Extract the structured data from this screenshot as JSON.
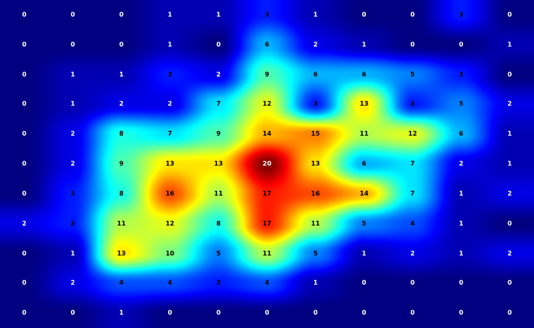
{
  "chart_data": {
    "type": "heatmap",
    "title": "",
    "xlabel": "",
    "ylabel": "",
    "rows": 11,
    "cols": 11,
    "values": [
      [
        0,
        0,
        0,
        1,
        1,
        3,
        1,
        0,
        0,
        3,
        0
      ],
      [
        0,
        0,
        0,
        1,
        0,
        6,
        2,
        1,
        0,
        0,
        1
      ],
      [
        0,
        1,
        1,
        3,
        2,
        9,
        6,
        6,
        5,
        3,
        0
      ],
      [
        0,
        1,
        2,
        2,
        7,
        12,
        3,
        13,
        3,
        5,
        2
      ],
      [
        0,
        2,
        8,
        7,
        9,
        14,
        15,
        11,
        12,
        6,
        1
      ],
      [
        0,
        2,
        9,
        13,
        13,
        20,
        13,
        6,
        7,
        2,
        1
      ],
      [
        0,
        3,
        8,
        16,
        11,
        17,
        16,
        14,
        7,
        1,
        2
      ],
      [
        2,
        3,
        11,
        12,
        8,
        17,
        11,
        5,
        4,
        1,
        0
      ],
      [
        0,
        1,
        13,
        10,
        5,
        11,
        5,
        1,
        2,
        1,
        2
      ],
      [
        0,
        2,
        4,
        4,
        3,
        4,
        1,
        0,
        0,
        0,
        0
      ],
      [
        0,
        0,
        1,
        0,
        0,
        0,
        0,
        0,
        0,
        0,
        0
      ]
    ],
    "value_range": [
      0,
      20
    ],
    "colormap": "jet",
    "interpolation": "smooth",
    "grid": false,
    "legend": "none",
    "label_colors": {
      "light": "#ffffff",
      "dark": "#000000"
    }
  }
}
